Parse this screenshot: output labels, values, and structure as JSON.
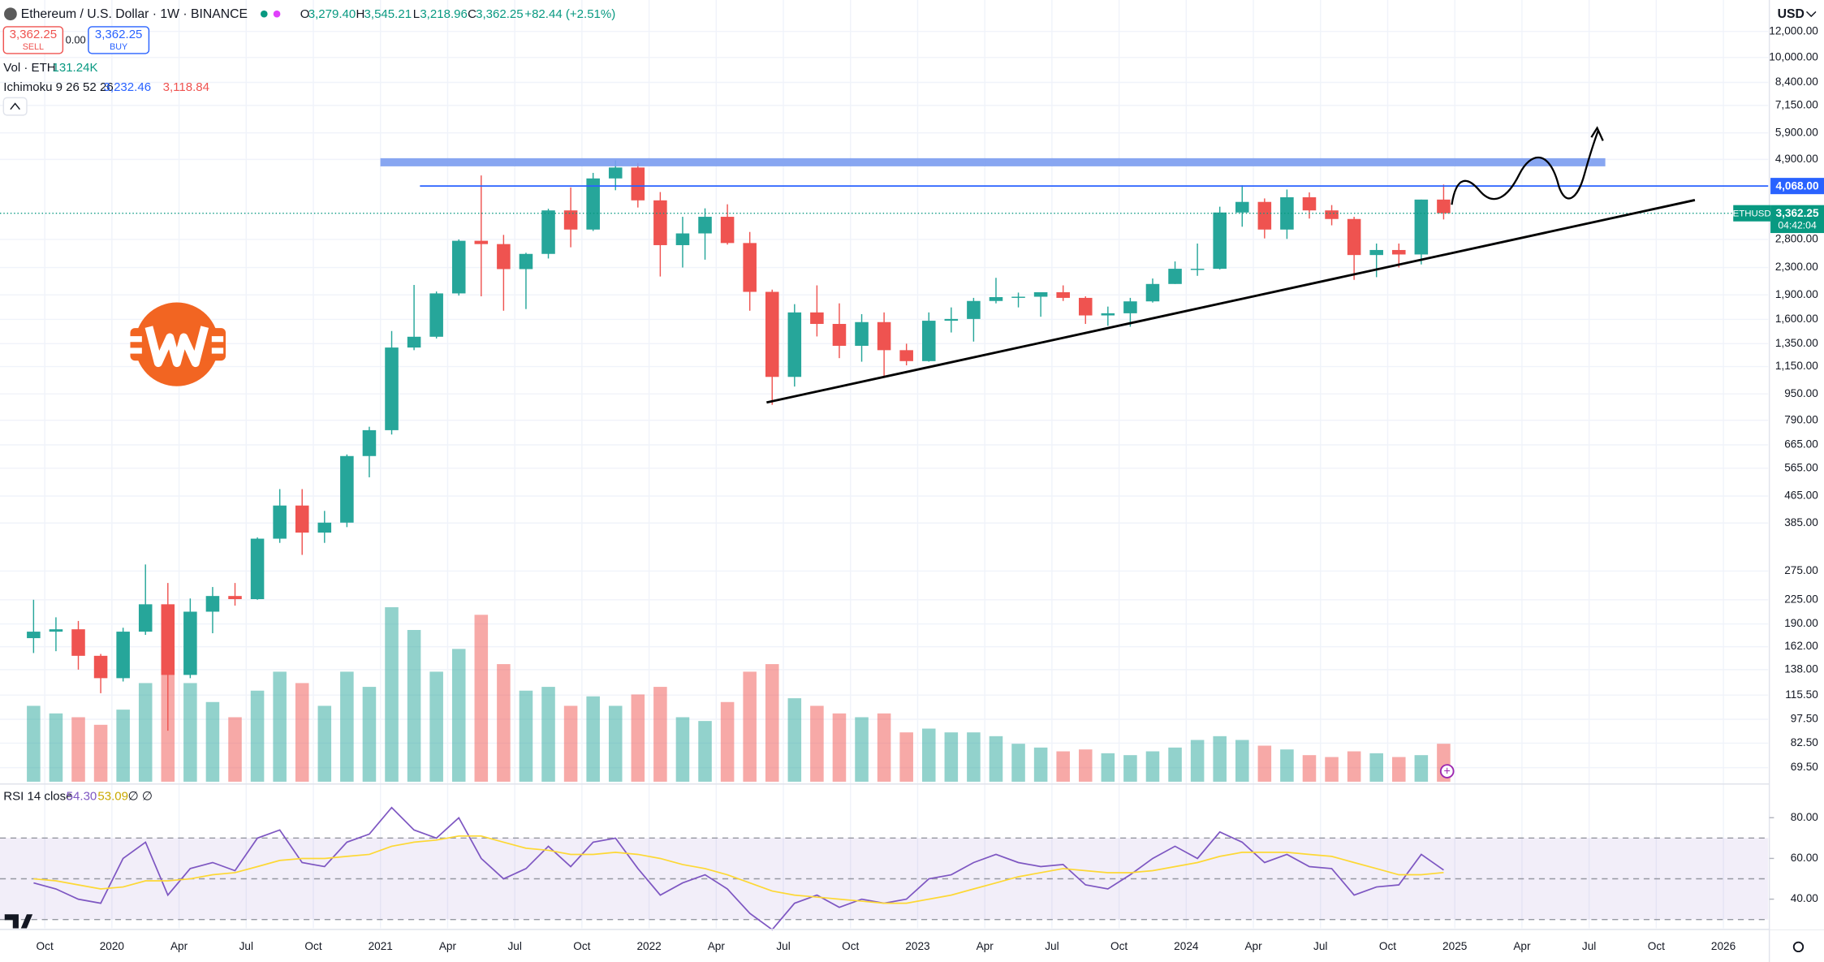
{
  "header": {
    "symbol": "Ethereum / U.S. Dollar · 1W · BINANCE",
    "ohlc": [
      {
        "key": "O",
        "value": "3,279.40"
      },
      {
        "key": "H",
        "value": "3,545.21"
      },
      {
        "key": "L",
        "value": "3,218.96"
      },
      {
        "key": "C",
        "value": "3,362.25"
      }
    ],
    "change": "+82.44 (+2.51%)",
    "sell": {
      "price": "3,362.25",
      "label": "SELL"
    },
    "spread": "0.00",
    "buy": {
      "price": "3,362.25",
      "label": "BUY"
    },
    "volume_legend": {
      "label": "Vol · ETH",
      "value": "131.24K"
    },
    "ichimoku_legend": {
      "label": "Ichimoku 9 26 52 26",
      "values": [
        "3,232.46",
        "3,118.84"
      ]
    },
    "currency": "USD"
  },
  "chart_data": [
    {
      "type": "candlestick",
      "log_scale": true,
      "grid": true,
      "up_color": "#26a69a",
      "down_color": "#ef5350",
      "x": [
        "2019-09",
        "2019-10",
        "2019-11",
        "2019-12",
        "2020-01",
        "2020-02",
        "2020-03",
        "2020-04",
        "2020-05",
        "2020-06",
        "2020-07",
        "2020-08",
        "2020-09",
        "2020-10",
        "2020-11",
        "2020-12",
        "2021-01",
        "2021-02",
        "2021-03",
        "2021-04",
        "2021-05",
        "2021-06",
        "2021-07",
        "2021-08",
        "2021-09",
        "2021-10",
        "2021-11",
        "2021-12",
        "2022-01",
        "2022-02",
        "2022-03",
        "2022-04",
        "2022-05",
        "2022-06",
        "2022-07",
        "2022-08",
        "2022-09",
        "2022-10",
        "2022-11",
        "2022-12",
        "2023-01",
        "2023-02",
        "2023-03",
        "2023-04",
        "2023-05",
        "2023-06",
        "2023-07",
        "2023-08",
        "2023-09",
        "2023-10",
        "2023-11",
        "2023-12",
        "2024-01",
        "2024-02",
        "2024-03",
        "2024-04",
        "2024-05",
        "2024-06",
        "2024-07",
        "2024-08",
        "2024-09",
        "2024-10",
        "2024-11",
        "2024-12"
      ],
      "open": [
        172,
        180,
        183,
        152,
        130,
        180,
        218,
        133,
        207,
        231,
        226,
        345,
        435,
        360,
        386,
        615,
        737,
        1314,
        1417,
        1919,
        2773,
        2710,
        2275,
        2530,
        3430,
        3000,
        4290,
        4630,
        3680,
        2690,
        2920,
        3280,
        2730,
        1940,
        1070,
        1680,
        1550,
        1330,
        1570,
        1290,
        1195,
        1585,
        1605,
        1820,
        1870,
        1875,
        1935,
        1860,
        1645,
        1670,
        1815,
        2050,
        2280,
        2280,
        3380,
        3640,
        3000,
        3760,
        3430,
        3230,
        2510,
        2600,
        2520,
        3700
      ],
      "high": [
        225,
        199,
        194,
        154,
        185,
        288,
        253,
        227,
        246,
        253,
        348,
        488,
        488,
        419,
        622,
        755,
        1475,
        2036,
        1945,
        2800,
        4380,
        2890,
        2550,
        3470,
        4030,
        4460,
        4870,
        4780,
        3900,
        3280,
        3480,
        3580,
        2950,
        1970,
        1780,
        2030,
        1790,
        1660,
        1680,
        1350,
        1680,
        1740,
        1860,
        2140,
        1930,
        1930,
        2030,
        1880,
        1750,
        1860,
        2130,
        2400,
        2720,
        3520,
        4090,
        3730,
        3970,
        3890,
        3560,
        3280,
        2720,
        2720,
        3700,
        4110
      ],
      "low": [
        155,
        157,
        138,
        117,
        127,
        176,
        90,
        130,
        178,
        216,
        225,
        335,
        308,
        335,
        374,
        530,
        715,
        1290,
        1400,
        1890,
        1880,
        1700,
        1720,
        2450,
        2650,
        2970,
        3950,
        3500,
        2160,
        2300,
        2430,
        2700,
        1700,
        880,
        1000,
        1420,
        1220,
        1190,
        1070,
        1160,
        1190,
        1460,
        1370,
        1790,
        1740,
        1630,
        1820,
        1550,
        1530,
        1520,
        1800,
        2050,
        2170,
        2270,
        3060,
        2820,
        2810,
        3240,
        3090,
        2110,
        2150,
        2300,
        2350,
        3220
      ],
      "close": [
        180,
        183,
        152,
        130,
        180,
        218,
        133,
        207,
        231,
        226,
        345,
        435,
        360,
        386,
        615,
        737,
        1314,
        1417,
        1919,
        2773,
        2710,
        2275,
        2530,
        3430,
        3000,
        4290,
        4630,
        3680,
        2690,
        2920,
        3280,
        2730,
        1940,
        1070,
        1680,
        1550,
        1330,
        1570,
        1290,
        1195,
        1585,
        1605,
        1820,
        1870,
        1875,
        1935,
        1860,
        1645,
        1670,
        1815,
        2050,
        2280,
        2280,
        3380,
        3640,
        3000,
        3760,
        3430,
        3230,
        2510,
        2600,
        2520,
        3700,
        3362.25
      ],
      "volume": [
        40,
        36,
        34,
        30,
        38,
        52,
        70,
        52,
        42,
        34,
        48,
        58,
        52,
        40,
        58,
        50,
        92,
        80,
        58,
        70,
        88,
        62,
        48,
        50,
        40,
        45,
        40,
        46,
        50,
        34,
        32,
        42,
        58,
        62,
        44,
        40,
        36,
        34,
        36,
        26,
        28,
        26,
        26,
        24,
        20,
        18,
        16,
        17,
        15,
        14,
        16,
        18,
        22,
        24,
        22,
        19,
        17,
        14,
        13,
        16,
        15,
        13,
        14,
        20
      ],
      "xlim": [
        "2019-08",
        "2026-03"
      ],
      "xticks": [
        {
          "value": "2019-10",
          "label": "Oct"
        },
        {
          "value": "2020-01",
          "label": "2020"
        },
        {
          "value": "2020-04",
          "label": "Apr"
        },
        {
          "value": "2020-07",
          "label": "Jul"
        },
        {
          "value": "2020-10",
          "label": "Oct"
        },
        {
          "value": "2021-01",
          "label": "2021"
        },
        {
          "value": "2021-04",
          "label": "Apr"
        },
        {
          "value": "2021-07",
          "label": "Jul"
        },
        {
          "value": "2021-10",
          "label": "Oct"
        },
        {
          "value": "2022-01",
          "label": "2022"
        },
        {
          "value": "2022-04",
          "label": "Apr"
        },
        {
          "value": "2022-07",
          "label": "Jul"
        },
        {
          "value": "2022-10",
          "label": "Oct"
        },
        {
          "value": "2023-01",
          "label": "2023"
        },
        {
          "value": "2023-04",
          "label": "Apr"
        },
        {
          "value": "2023-07",
          "label": "Jul"
        },
        {
          "value": "2023-10",
          "label": "Oct"
        },
        {
          "value": "2024-01",
          "label": "2024"
        },
        {
          "value": "2024-04",
          "label": "Apr"
        },
        {
          "value": "2024-07",
          "label": "Jul"
        },
        {
          "value": "2024-10",
          "label": "Oct"
        },
        {
          "value": "2025-01",
          "label": "2025"
        },
        {
          "value": "2025-04",
          "label": "Apr"
        },
        {
          "value": "2025-07",
          "label": "Jul"
        },
        {
          "value": "2025-10",
          "label": "Oct"
        },
        {
          "value": "2026-01",
          "label": "2026"
        }
      ],
      "ylim": [
        63,
        14950
      ],
      "yticks": [
        {
          "value": 12000,
          "label": "12,000.00"
        },
        {
          "value": 10000,
          "label": "10,000.00"
        },
        {
          "value": 8400,
          "label": "8,400.00"
        },
        {
          "value": 7150,
          "label": "7,150.00"
        },
        {
          "value": 5900,
          "label": "5,900.00"
        },
        {
          "value": 4900,
          "label": "4,900.00"
        },
        {
          "value": 2800,
          "label": "2,800.00"
        },
        {
          "value": 2300,
          "label": "2,300.00"
        },
        {
          "value": 1900,
          "label": "1,900.00"
        },
        {
          "value": 1600,
          "label": "1,600.00"
        },
        {
          "value": 1350,
          "label": "1,350.00"
        },
        {
          "value": 1150,
          "label": "1,150.00"
        },
        {
          "value": 950,
          "label": "950.00"
        },
        {
          "value": 790,
          "label": "790.00"
        },
        {
          "value": 665,
          "label": "665.00"
        },
        {
          "value": 565,
          "label": "565.00"
        },
        {
          "value": 465,
          "label": "465.00"
        },
        {
          "value": 385,
          "label": "385.00"
        },
        {
          "value": 275,
          "label": "275.00"
        },
        {
          "value": 225,
          "label": "225.00"
        },
        {
          "value": 190,
          "label": "190.00"
        },
        {
          "value": 162,
          "label": "162.00"
        },
        {
          "value": 138,
          "label": "138.00"
        },
        {
          "value": 115.5,
          "label": "115.50"
        },
        {
          "value": 97.5,
          "label": "97.50"
        },
        {
          "value": 82.5,
          "label": "82.50"
        },
        {
          "value": 69.5,
          "label": "69.50"
        }
      ],
      "level": {
        "value": 4068,
        "label": "4,068.00",
        "color": "#2962ff"
      },
      "last_price": {
        "value": 3362.25,
        "label": "3,362.25",
        "symbol": "ETHUSD",
        "countdown": "04:42:04",
        "color": "#089981"
      }
    },
    {
      "type": "line",
      "title": "RSI 14 close",
      "legend_values": [
        "54.30",
        "53.09",
        "∅ ∅"
      ],
      "x": [
        "2019-09",
        "2019-10",
        "2019-11",
        "2019-12",
        "2020-01",
        "2020-02",
        "2020-03",
        "2020-04",
        "2020-05",
        "2020-06",
        "2020-07",
        "2020-08",
        "2020-09",
        "2020-10",
        "2020-11",
        "2020-12",
        "2021-01",
        "2021-02",
        "2021-03",
        "2021-04",
        "2021-05",
        "2021-06",
        "2021-07",
        "2021-08",
        "2021-09",
        "2021-10",
        "2021-11",
        "2021-12",
        "2022-01",
        "2022-02",
        "2022-03",
        "2022-04",
        "2022-05",
        "2022-06",
        "2022-07",
        "2022-08",
        "2022-09",
        "2022-10",
        "2022-11",
        "2022-12",
        "2023-01",
        "2023-02",
        "2023-03",
        "2023-04",
        "2023-05",
        "2023-06",
        "2023-07",
        "2023-08",
        "2023-09",
        "2023-10",
        "2023-11",
        "2023-12",
        "2024-01",
        "2024-02",
        "2024-03",
        "2024-04",
        "2024-05",
        "2024-06",
        "2024-07",
        "2024-08",
        "2024-09",
        "2024-10",
        "2024-11",
        "2024-12"
      ],
      "series": [
        {
          "color": "#7e57c2",
          "values": [
            48,
            45,
            40,
            38,
            60,
            68,
            42,
            55,
            58,
            54,
            70,
            74,
            58,
            56,
            68,
            72,
            85,
            74,
            70,
            80,
            60,
            50,
            55,
            66,
            56,
            68,
            70,
            55,
            42,
            48,
            52,
            45,
            33,
            25,
            38,
            42,
            36,
            40,
            38,
            40,
            50,
            52,
            58,
            62,
            58,
            56,
            57,
            47,
            45,
            52,
            60,
            66,
            60,
            73,
            68,
            58,
            62,
            56,
            55,
            42,
            46,
            47,
            62,
            54.3
          ]
        },
        {
          "color": "#fdd835",
          "values": [
            50,
            49,
            47,
            45,
            46,
            49,
            49,
            50,
            52,
            53,
            56,
            59,
            60,
            60,
            61,
            62,
            66,
            68,
            69,
            71,
            71,
            68,
            65,
            64,
            62,
            62,
            63,
            62,
            60,
            57,
            55,
            52,
            48,
            44,
            42,
            41,
            40,
            39,
            38,
            38,
            40,
            42,
            45,
            48,
            51,
            53,
            55,
            54,
            53,
            53,
            54,
            56,
            58,
            61,
            63,
            63,
            63,
            62,
            61,
            58,
            55,
            52,
            52,
            53.09
          ]
        }
      ],
      "ylim": [
        25.7,
        95.4
      ],
      "yticks": [
        {
          "value": 80,
          "label": "80.00"
        },
        {
          "value": 60,
          "label": "60.00"
        },
        {
          "value": 40,
          "label": "40.00"
        }
      ],
      "band": [
        30,
        70
      ],
      "midline": 50
    }
  ]
}
